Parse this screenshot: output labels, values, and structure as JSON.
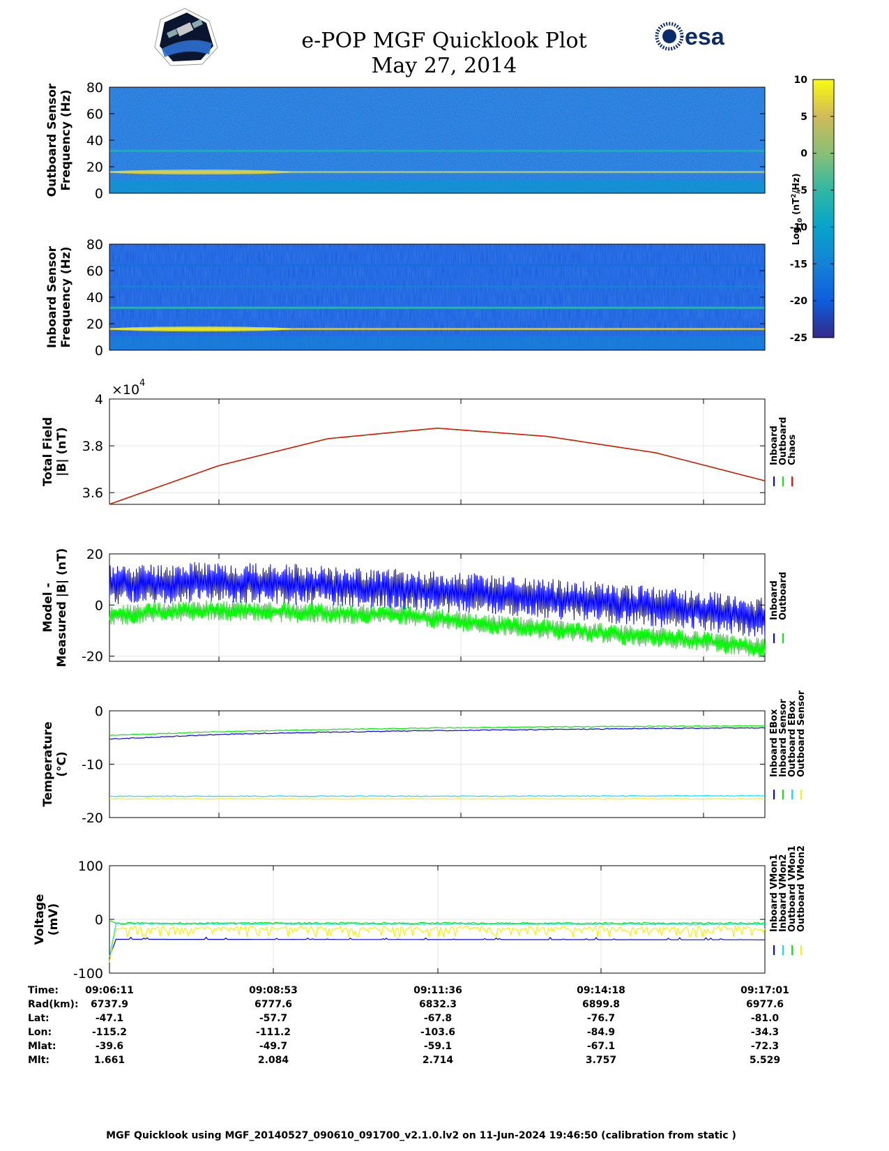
{
  "header": {
    "title": "e-POP MGF Quicklook Plot",
    "date": "May 27, 2014",
    "esa_logo_text": "esa"
  },
  "colorbar": {
    "label": "Log10 (nT²/Hz)",
    "ticks": [
      10,
      5,
      0,
      -5,
      -10,
      -15,
      -20,
      -25
    ],
    "range": [
      -25,
      10
    ],
    "colormap": "parula"
  },
  "colors": {
    "blue": "#0000ff",
    "green": "#00ee00",
    "red": "#ff0000",
    "cyan": "#00e5ff",
    "yellow": "#ffee00"
  },
  "chart_data": [
    {
      "type": "heatmap",
      "name": "outboard-spectrogram",
      "ylabel": "Outboard Sensor Frequency (Hz)",
      "ylim": [
        0,
        80
      ],
      "yticks": [
        0,
        20,
        40,
        60,
        80
      ],
      "background_level": -17,
      "lines": [
        {
          "freq": 16,
          "level": 2
        },
        {
          "freq": 32,
          "level": -7
        }
      ]
    },
    {
      "type": "heatmap",
      "name": "inboard-spectrogram",
      "ylabel": "Inboard Sensor Frequency (Hz)",
      "ylim": [
        0,
        80
      ],
      "yticks": [
        0,
        20,
        40,
        60,
        80
      ],
      "background_level": -20,
      "lines": [
        {
          "freq": 16,
          "level": 4
        },
        {
          "freq": 32,
          "level": -6
        },
        {
          "freq": 48,
          "level": -15
        },
        {
          "freq": 64,
          "level": -17
        }
      ]
    },
    {
      "type": "line",
      "name": "total-field",
      "ylabel": "Total Field |B| (nT)",
      "exponent": "×10^4",
      "ylim": [
        3.55,
        4.0
      ],
      "yticks": [
        3.6,
        3.8,
        4
      ],
      "xlim": [
        0,
        1
      ],
      "series": [
        {
          "name": "Inboard",
          "color": "#0000ff",
          "x": [
            0,
            0.167,
            0.333,
            0.5,
            0.667,
            0.833,
            1
          ],
          "y": [
            3.55,
            3.715,
            3.83,
            3.875,
            3.84,
            3.77,
            3.65
          ]
        },
        {
          "name": "Outboard",
          "color": "#00ee00",
          "x": [
            0,
            0.167,
            0.333,
            0.5,
            0.667,
            0.833,
            1
          ],
          "y": [
            3.55,
            3.715,
            3.83,
            3.875,
            3.84,
            3.77,
            3.65
          ]
        },
        {
          "name": "Chaos",
          "color": "#ff0000",
          "x": [
            0,
            0.167,
            0.333,
            0.5,
            0.667,
            0.833,
            1
          ],
          "y": [
            3.551,
            3.716,
            3.831,
            3.876,
            3.841,
            3.771,
            3.651
          ]
        }
      ]
    },
    {
      "type": "line",
      "name": "model-measured",
      "ylabel": "Model - Measured |B| (nT)",
      "ylim": [
        -22,
        20
      ],
      "yticks": [
        -20,
        0,
        20
      ],
      "xlim": [
        0,
        1
      ],
      "series": [
        {
          "name": "Inboard",
          "color": "#0000ff",
          "x": [
            0,
            0.15,
            0.3,
            0.45,
            0.6,
            0.75,
            0.9,
            1
          ],
          "y": [
            8,
            9,
            8,
            6,
            4,
            1,
            -2,
            -5
          ],
          "spread": 8
        },
        {
          "name": "Outboard",
          "color": "#00ee00",
          "x": [
            0,
            0.15,
            0.3,
            0.45,
            0.6,
            0.75,
            0.9,
            1
          ],
          "y": [
            -4,
            -2,
            -3,
            -4,
            -8,
            -11,
            -14,
            -17
          ],
          "spread": 4
        }
      ]
    },
    {
      "type": "line",
      "name": "temperature",
      "ylabel": "Temperature (°C)",
      "ylim": [
        -20,
        0
      ],
      "yticks": [
        -20,
        -10,
        0
      ],
      "xlim": [
        0,
        1
      ],
      "series": [
        {
          "name": "Inboard EBox",
          "color": "#0000ff",
          "x": [
            0,
            0.17,
            0.33,
            0.5,
            0.67,
            0.83,
            1
          ],
          "y": [
            -5.3,
            -4.4,
            -4.0,
            -3.7,
            -3.5,
            -3.3,
            -3.2
          ]
        },
        {
          "name": "Inboard Sensor",
          "color": "#00ee00",
          "x": [
            0,
            0.17,
            0.33,
            0.5,
            0.67,
            0.83,
            1
          ],
          "y": [
            -4.6,
            -3.9,
            -3.5,
            -3.2,
            -3.0,
            -2.9,
            -2.8
          ]
        },
        {
          "name": "Outboard EBox",
          "color": "#00e5ff",
          "x": [
            0,
            0.5,
            1
          ],
          "y": [
            -16.0,
            -16.0,
            -15.9
          ]
        },
        {
          "name": "Outboard Sensor",
          "color": "#ffee00",
          "x": [
            0,
            0.5,
            1
          ],
          "y": [
            -16.5,
            -16.5,
            -16.5
          ]
        }
      ]
    },
    {
      "type": "line",
      "name": "voltage",
      "ylabel": "Voltage (mV)",
      "ylim": [
        -100,
        100
      ],
      "yticks": [
        -100,
        0,
        100
      ],
      "xlim": [
        0,
        1
      ],
      "series": [
        {
          "name": "Inboard VMon1",
          "color": "#0000ff",
          "x": [
            0,
            0.01,
            1
          ],
          "y": [
            -70,
            -37,
            -38
          ]
        },
        {
          "name": "Inboard VMon2",
          "color": "#00e5ff",
          "x": [
            0,
            0.01,
            1
          ],
          "y": [
            -70,
            -8,
            -9
          ]
        },
        {
          "name": "Outboard VMon1",
          "color": "#00ee00",
          "x": [
            0,
            0.01,
            1
          ],
          "y": [
            -2,
            -7,
            -7
          ]
        },
        {
          "name": "Outboard VMon2",
          "color": "#ffee00",
          "x": [
            0,
            0.01,
            1
          ],
          "y": [
            -80,
            -16,
            -16
          ]
        }
      ]
    }
  ],
  "ephemeris": {
    "rows": [
      {
        "label": "Time:",
        "values": [
          "09:06:11",
          "09:08:53",
          "09:11:36",
          "09:14:18",
          "09:17:01"
        ]
      },
      {
        "label": "Rad(km):",
        "values": [
          "6737.9",
          "6777.6",
          "6832.3",
          "6899.8",
          "6977.6"
        ]
      },
      {
        "label": "Lat:",
        "values": [
          "-47.1",
          "-57.7",
          "-67.8",
          "-76.7",
          "-81.0"
        ]
      },
      {
        "label": "Lon:",
        "values": [
          "-115.2",
          "-111.2",
          "-103.6",
          "-84.9",
          "-34.3"
        ]
      },
      {
        "label": "Mlat:",
        "values": [
          "-39.6",
          "-49.7",
          "-59.1",
          "-67.1",
          "-72.3"
        ]
      },
      {
        "label": "Mlt:",
        "values": [
          "1.661",
          "2.084",
          "2.714",
          "3.757",
          "5.529"
        ]
      }
    ]
  },
  "footer": {
    "text": "MGF Quicklook using MGF_20140527_090610_091700_v2.1.0.lv2 on 11-Jun-2024 19:46:50 (calibration from static )"
  }
}
